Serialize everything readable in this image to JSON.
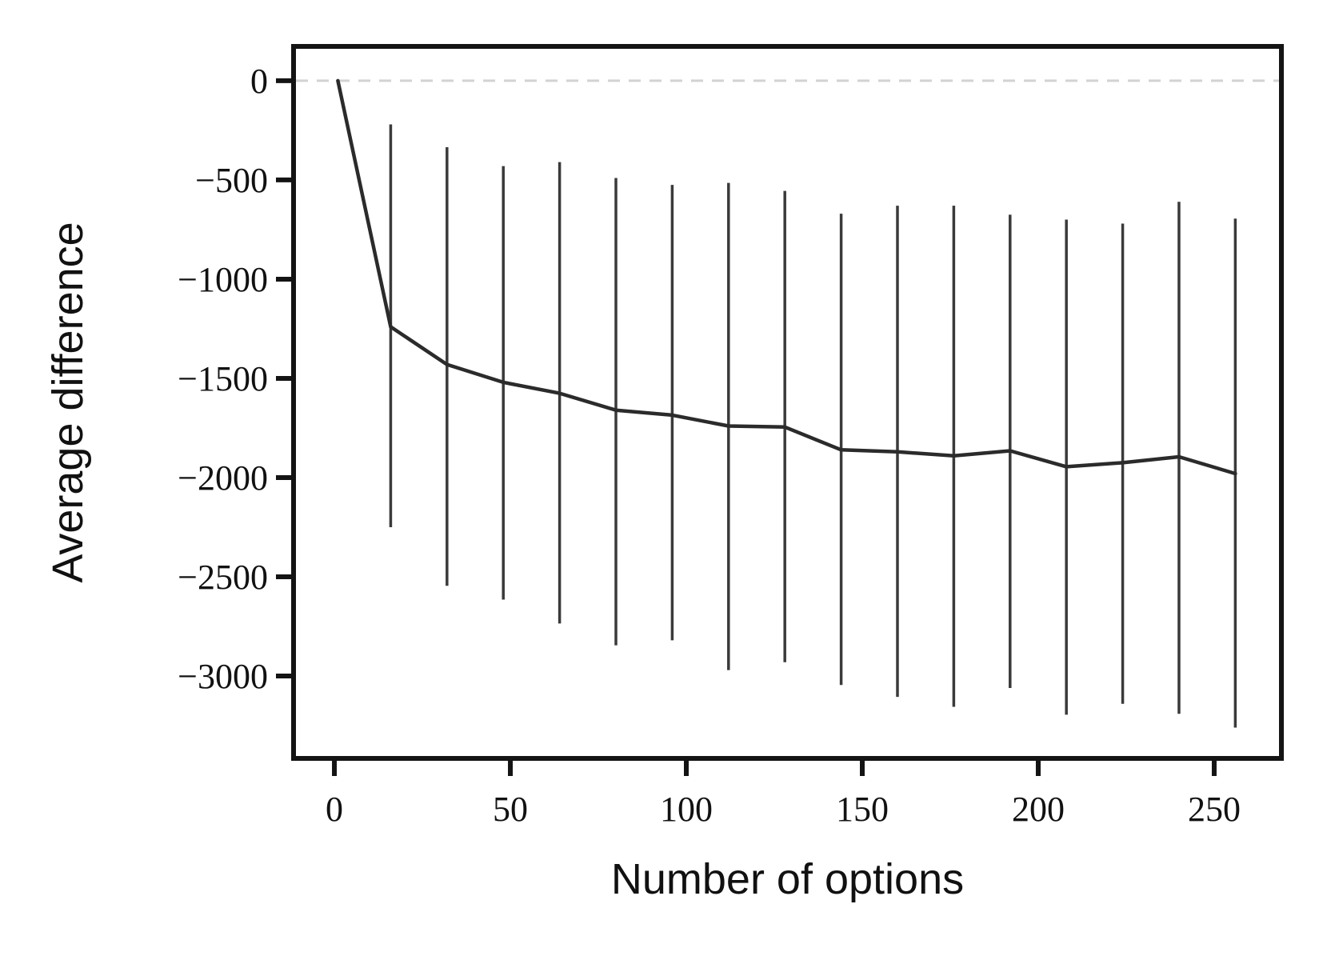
{
  "figure": {
    "background": "#ffffff",
    "spine_color": "#141414",
    "tick_color": "#141414",
    "tick_label_color": "#111111"
  },
  "chart_data": {
    "type": "line",
    "subtype": "errorbar",
    "title": "",
    "xlabel": "Number of options",
    "ylabel": "Average difference",
    "grid": false,
    "legend": null,
    "xlim": [
      -11.6,
      269.1
    ],
    "ylim": [
      -3415,
      173
    ],
    "x_ticks": [
      0,
      50,
      100,
      150,
      200,
      250
    ],
    "x_tick_labels": [
      "0",
      "50",
      "100",
      "150",
      "200",
      "250"
    ],
    "y_ticks": [
      0,
      -500,
      -1000,
      -1500,
      -2000,
      -2500,
      -3000
    ],
    "y_tick_labels": [
      "0",
      "−500",
      "−1000",
      "−1500",
      "−2000",
      "−2500",
      "−3000"
    ],
    "zero_line": {
      "y": 0,
      "style": "dashed",
      "color": "#d3d3d3"
    },
    "series": [
      {
        "name": "average difference",
        "color": "#2b2b2b",
        "errorbar_color": "#3a3a3a",
        "x": [
          1,
          16,
          32,
          48,
          64,
          80,
          96,
          112,
          128,
          144,
          160,
          176,
          192,
          208,
          224,
          240,
          256
        ],
        "y": [
          0,
          -1240,
          -1430,
          -1520,
          -1575,
          -1660,
          -1685,
          -1740,
          -1745,
          -1860,
          -1870,
          -1890,
          -1865,
          -1945,
          -1925,
          -1895,
          -1980
        ],
        "y_upper": [
          null,
          -220,
          -335,
          -430,
          -410,
          -490,
          -525,
          -515,
          -555,
          -670,
          -630,
          -630,
          -675,
          -700,
          -720,
          -610,
          -695
        ],
        "y_lower": [
          null,
          -2250,
          -2545,
          -2615,
          -2735,
          -2845,
          -2820,
          -2970,
          -2930,
          -3045,
          -3105,
          -3155,
          -3060,
          -3195,
          -3140,
          -3190,
          -3260
        ]
      }
    ]
  }
}
